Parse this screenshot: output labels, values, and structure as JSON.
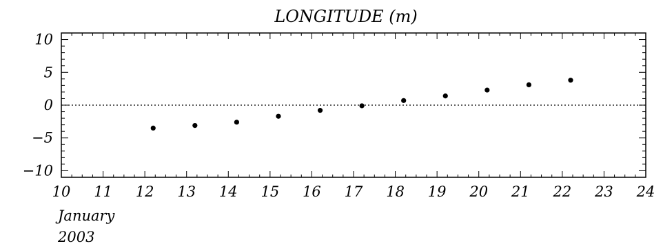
{
  "chart_data": {
    "type": "scatter",
    "title": "LONGITUDE (m)",
    "xlabel": "",
    "ylabel": "",
    "x_note": [
      "January",
      "2003"
    ],
    "xlim": [
      10,
      24
    ],
    "ylim": [
      -11,
      11
    ],
    "x_ticks": [
      10,
      11,
      12,
      13,
      14,
      15,
      16,
      17,
      18,
      19,
      20,
      21,
      22,
      23,
      24
    ],
    "y_ticks": [
      10,
      5,
      0,
      -5,
      -10
    ],
    "y_tick_labels": [
      "10",
      "5",
      "0",
      "−5",
      "−10"
    ],
    "zero_line": true,
    "grid": false,
    "series": [
      {
        "color": "#000000",
        "points": [
          {
            "x": 12.2,
            "y": -3.5
          },
          {
            "x": 13.2,
            "y": -3.1
          },
          {
            "x": 14.2,
            "y": -2.6
          },
          {
            "x": 15.2,
            "y": -1.7
          },
          {
            "x": 16.2,
            "y": -0.8
          },
          {
            "x": 17.2,
            "y": -0.1
          },
          {
            "x": 18.2,
            "y": 0.7
          },
          {
            "x": 19.2,
            "y": 1.4
          },
          {
            "x": 20.2,
            "y": 2.3
          },
          {
            "x": 21.2,
            "y": 3.1
          },
          {
            "x": 22.2,
            "y": 3.8
          }
        ]
      }
    ]
  }
}
